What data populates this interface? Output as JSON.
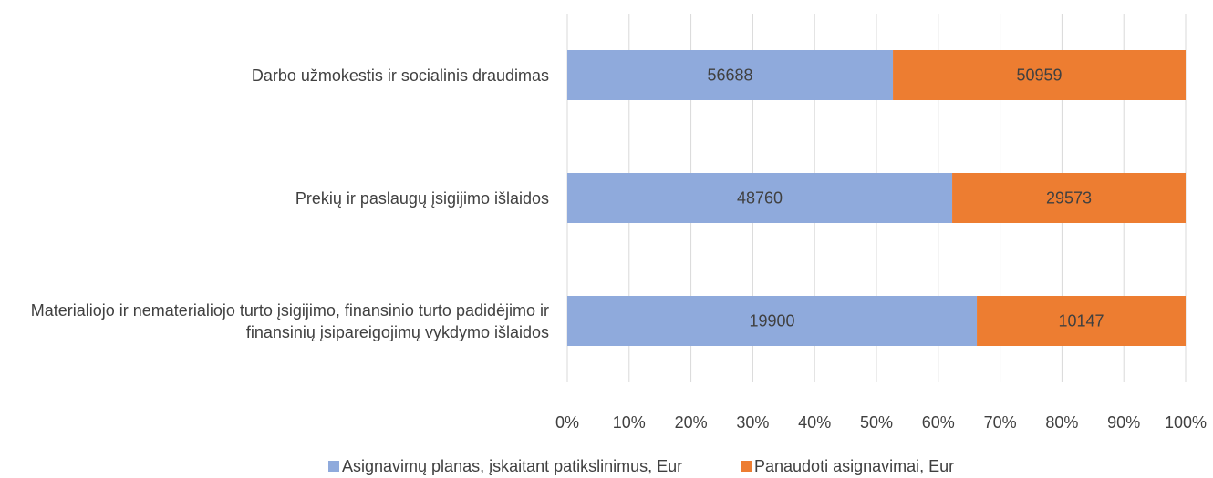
{
  "chart_data": {
    "type": "bar",
    "orientation": "horizontal",
    "stacking": "percent",
    "categories": [
      "Darbo užmokestis ir socialinis draudimas",
      "Prekių ir paslaugų įsigijimo išlaidos",
      "Materialiojo ir nematerialiojo turto įsigijimo, finansinio turto padidėjimo ir finansinių įsipareigojimų vykdymo išlaidos"
    ],
    "series": [
      {
        "name": "Asignavimų planas, įskaitant patikslinimus, Eur",
        "color": "#8faadc",
        "values": [
          56688,
          48760,
          19900
        ]
      },
      {
        "name": "Panaudoti asignavimai, Eur",
        "color": "#ed7d31",
        "values": [
          50959,
          29573,
          10147
        ]
      }
    ],
    "xlim": [
      0,
      100
    ],
    "xticks": [
      {
        "value": 0,
        "label": "0%"
      },
      {
        "value": 10,
        "label": "10%"
      },
      {
        "value": 20,
        "label": "20%"
      },
      {
        "value": 30,
        "label": "30%"
      },
      {
        "value": 40,
        "label": "40%"
      },
      {
        "value": 50,
        "label": "50%"
      },
      {
        "value": 60,
        "label": "60%"
      },
      {
        "value": 70,
        "label": "70%"
      },
      {
        "value": 80,
        "label": "80%"
      },
      {
        "value": 90,
        "label": "90%"
      },
      {
        "value": 100,
        "label": "100%"
      }
    ],
    "grid": true,
    "legend": "bottom"
  }
}
